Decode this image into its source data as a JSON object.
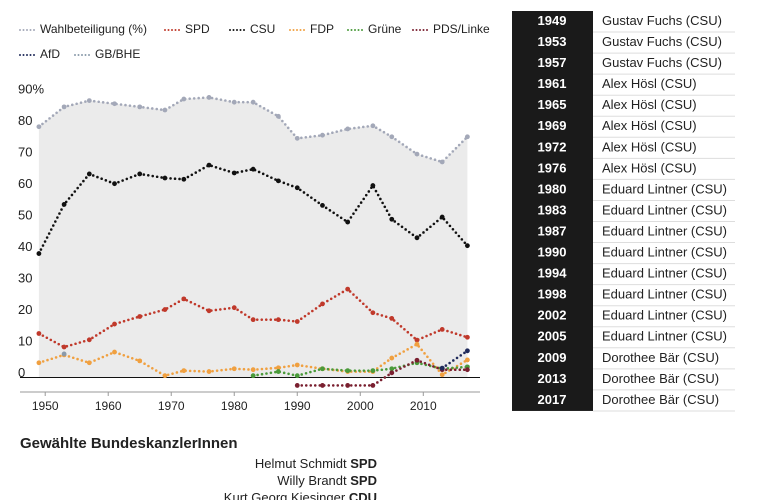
{
  "chart_data": {
    "type": "line",
    "x": [
      1949,
      1953,
      1957,
      1961,
      1965,
      1969,
      1972,
      1976,
      1980,
      1983,
      1987,
      1990,
      1994,
      1998,
      2002,
      2005,
      2009,
      2013,
      2017
    ],
    "series": [
      {
        "name": "Wahlbeteiligung (%)",
        "color": "#a3a8b8",
        "fill": "#ebebeb",
        "values": [
          79.7,
          86,
          88,
          87,
          86,
          85,
          88.5,
          89,
          87.5,
          87.5,
          83,
          76,
          77,
          79,
          80,
          76.5,
          71,
          68.5,
          76.5
        ]
      },
      {
        "name": "SPD",
        "color": "#c0392b",
        "values": [
          14,
          9.7,
          12,
          17,
          19.4,
          21.6,
          25,
          21.2,
          22.2,
          18.4,
          18.4,
          17.8,
          23.4,
          28.1,
          20.6,
          18.8,
          11.9,
          15.3,
          12.8
        ]
      },
      {
        "name": "CSU",
        "color": "#111111",
        "values": [
          39.4,
          55,
          64.7,
          61.6,
          64.7,
          63.4,
          63,
          67.5,
          65,
          66.2,
          62.5,
          60.3,
          54.7,
          49.4,
          61,
          50.3,
          44.4,
          51,
          41.9
        ]
      },
      {
        "name": "FDP",
        "color": "#f0a040",
        "values": [
          4.7,
          7.2,
          4.7,
          8.1,
          5.3,
          0.6,
          2.2,
          1.9,
          2.8,
          2.5,
          3.1,
          4,
          2.8,
          1.9,
          1.9,
          6.2,
          10.6,
          0.9,
          5.6
        ]
      },
      {
        "name": "Grüne",
        "color": "#4a9a3a",
        "values": [
          null,
          null,
          null,
          null,
          null,
          null,
          null,
          null,
          null,
          0.6,
          1.9,
          0.6,
          2.8,
          2.2,
          2.2,
          2.8,
          4.7,
          2.8,
          3.4
        ]
      },
      {
        "name": "PDS/Linke",
        "color": "#7a2030",
        "values": [
          null,
          null,
          null,
          null,
          null,
          null,
          null,
          null,
          null,
          null,
          null,
          -2.5,
          -2.5,
          -2.5,
          -2.5,
          1.5,
          5.5,
          2.5,
          2.5
        ]
      },
      {
        "name": "AfD",
        "color": "#1f2a5a",
        "values": [
          null,
          null,
          null,
          null,
          null,
          null,
          null,
          null,
          null,
          null,
          null,
          null,
          null,
          null,
          null,
          null,
          null,
          3,
          8.5
        ]
      },
      {
        "name": "GB/BHE",
        "color": "#8a9aaa",
        "values": [
          null,
          7.5,
          null,
          null,
          null,
          null,
          null,
          null,
          null,
          null,
          null,
          null,
          null,
          null,
          null,
          null,
          null,
          null,
          null
        ]
      }
    ],
    "xlim": [
      1946,
      2019
    ],
    "xticks": [
      1950,
      1960,
      1970,
      1980,
      1990,
      2000,
      2010
    ],
    "ylim": [
      -3,
      92
    ],
    "yticks": [
      0,
      10,
      20,
      30,
      40,
      50,
      60,
      70,
      80,
      {
        "value": 90,
        "label": "90%"
      }
    ],
    "grid": false
  },
  "table": {
    "rows": [
      [
        "1949",
        "Gustav Fuchs (CSU)"
      ],
      [
        "1953",
        "Gustav Fuchs (CSU)"
      ],
      [
        "1957",
        "Gustav Fuchs (CSU)"
      ],
      [
        "1961",
        "Alex Hösl (CSU)"
      ],
      [
        "1965",
        "Alex Hösl (CSU)"
      ],
      [
        "1969",
        "Alex Hösl (CSU)"
      ],
      [
        "1972",
        "Alex Hösl (CSU)"
      ],
      [
        "1976",
        "Alex Hösl (CSU)"
      ],
      [
        "1980",
        "Eduard Lintner (CSU)"
      ],
      [
        "1983",
        "Eduard Lintner (CSU)"
      ],
      [
        "1987",
        "Eduard Lintner (CSU)"
      ],
      [
        "1990",
        "Eduard Lintner (CSU)"
      ],
      [
        "1994",
        "Eduard Lintner (CSU)"
      ],
      [
        "1998",
        "Eduard Lintner (CSU)"
      ],
      [
        "2002",
        "Eduard Lintner (CSU)"
      ],
      [
        "2005",
        "Eduard Lintner (CSU)"
      ],
      [
        "2009",
        "Dorothee Bär (CSU)"
      ],
      [
        "2013",
        "Dorothee Bär (CSU)"
      ],
      [
        "2017",
        "Dorothee Bär (CSU)"
      ]
    ]
  },
  "chancellors": {
    "title": "Gewählte BundeskanzlerInnen",
    "items": [
      {
        "name": "Helmut Schmidt",
        "party": "SPD"
      },
      {
        "name": "Willy Brandt",
        "party": "SPD"
      },
      {
        "name": "Kurt Georg Kiesinger",
        "party": "CDU"
      }
    ]
  }
}
